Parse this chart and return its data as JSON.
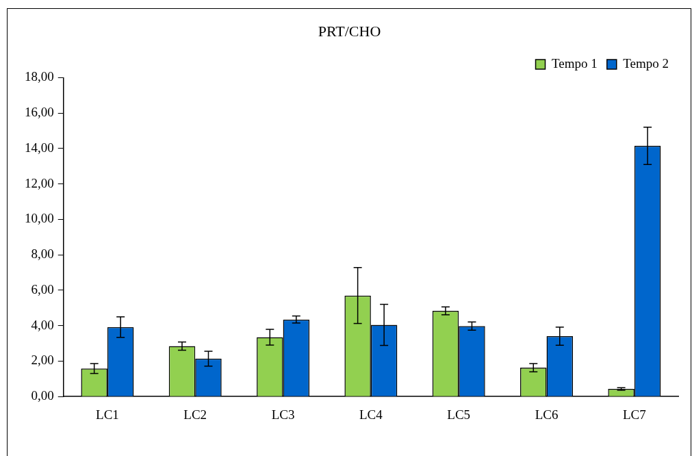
{
  "chart_data": {
    "type": "bar",
    "title": "PRT/CHO",
    "categories": [
      "LC1",
      "LC2",
      "LC3",
      "LC4",
      "LC5",
      "LC6",
      "LC7"
    ],
    "series": [
      {
        "name": "Tempo 1",
        "color": "#92d050",
        "values": [
          1.58,
          2.85,
          3.35,
          5.7,
          4.84,
          1.63,
          0.43
        ],
        "errors": [
          0.28,
          0.23,
          0.44,
          1.58,
          0.22,
          0.23,
          0.07
        ]
      },
      {
        "name": "Tempo 2",
        "color": "#0066cc",
        "values": [
          3.92,
          2.14,
          4.35,
          4.05,
          3.98,
          3.41,
          14.15
        ],
        "errors": [
          0.58,
          0.42,
          0.2,
          1.16,
          0.23,
          0.51,
          1.05
        ]
      }
    ],
    "ylim": [
      0,
      18
    ],
    "yticks": [
      {
        "value": 0,
        "label": "0,00"
      },
      {
        "value": 2,
        "label": "2,00"
      },
      {
        "value": 4,
        "label": "4,00"
      },
      {
        "value": 6,
        "label": "6,00"
      },
      {
        "value": 8,
        "label": "8,00"
      },
      {
        "value": 10,
        "label": "10,00"
      },
      {
        "value": 12,
        "label": "12,00"
      },
      {
        "value": 14,
        "label": "14,00"
      },
      {
        "value": 16,
        "label": "16,00"
      },
      {
        "value": 18,
        "label": "18,00"
      }
    ],
    "grid": false,
    "legend": "top right"
  }
}
